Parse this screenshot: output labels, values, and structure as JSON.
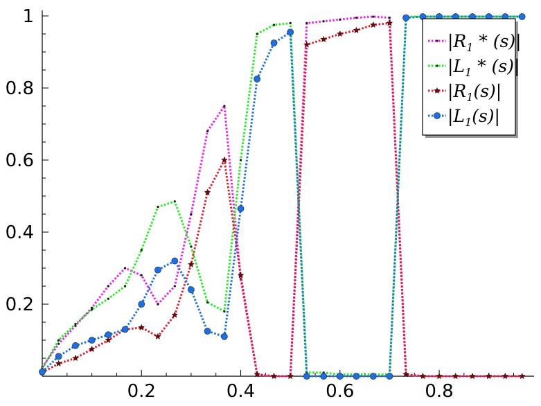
{
  "chart_data": {
    "type": "line",
    "title": "",
    "xlabel": "",
    "ylabel": "",
    "xlim": [
      0,
      0.98
    ],
    "ylim": [
      0,
      1.0
    ],
    "grid": false,
    "legend_position": "top-right",
    "x_ticks": [
      {
        "value": 0.2,
        "label": "0.2"
      },
      {
        "value": 0.4,
        "label": "0.4"
      },
      {
        "value": 0.6,
        "label": "0.6"
      },
      {
        "value": 0.8,
        "label": "0.8"
      }
    ],
    "y_ticks": [
      {
        "value": 0.2,
        "label": "0.2"
      },
      {
        "value": 0.4,
        "label": "0.4"
      },
      {
        "value": 0.6,
        "label": "0.6"
      },
      {
        "value": 0.8,
        "label": "0.8"
      },
      {
        "value": 1.0,
        "label": "1"
      }
    ],
    "x": [
      0.0,
      0.033,
      0.067,
      0.1,
      0.133,
      0.167,
      0.2,
      0.233,
      0.267,
      0.3,
      0.333,
      0.367,
      0.4,
      0.433,
      0.467,
      0.5,
      0.533,
      0.567,
      0.6,
      0.633,
      0.667,
      0.7,
      0.733,
      0.767,
      0.8,
      0.833,
      0.867,
      0.9,
      0.933,
      0.967
    ],
    "series": [
      {
        "name": "|R1*(s)|",
        "legend_label": "|R1 * (s)|",
        "color": "#ee1fee",
        "marker": "dot",
        "values": [
          0.025,
          0.09,
          0.14,
          0.19,
          0.25,
          0.3,
          0.28,
          0.2,
          0.25,
          0.45,
          0.68,
          0.75,
          0.27,
          0.005,
          0.0,
          0.0,
          0.98,
          0.985,
          0.99,
          0.995,
          0.998,
          0.995,
          0.005,
          0.0,
          0.0,
          0.0,
          0.0,
          0.0,
          0.0,
          0.0
        ]
      },
      {
        "name": "|L1*(s)|",
        "legend_label": "|L1 * (s)|",
        "color": "#1fee1f",
        "marker": "dot",
        "values": [
          0.02,
          0.1,
          0.145,
          0.185,
          0.215,
          0.25,
          0.35,
          0.47,
          0.485,
          0.36,
          0.205,
          0.18,
          0.6,
          0.95,
          0.975,
          0.98,
          0.01,
          0.01,
          0.005,
          0.005,
          0.005,
          0.005,
          0.998,
          0.998,
          0.998,
          0.998,
          0.998,
          0.998,
          0.998,
          0.998
        ]
      },
      {
        "name": "|R1(s)|",
        "legend_label": "|R1(s)|",
        "color": "#dd1f2f",
        "marker": "star",
        "values": [
          0.01,
          0.035,
          0.05,
          0.075,
          0.1,
          0.13,
          0.135,
          0.11,
          0.17,
          0.31,
          0.51,
          0.6,
          0.28,
          0.005,
          0.0,
          0.0,
          0.92,
          0.935,
          0.95,
          0.96,
          0.975,
          0.98,
          0.005,
          0.0,
          0.0,
          0.0,
          0.0,
          0.0,
          0.0,
          0.0
        ]
      },
      {
        "name": "|L1(s)|",
        "legend_label": "|L1(s)|",
        "color": "#1f6fdf",
        "marker": "circle",
        "values": [
          0.012,
          0.055,
          0.085,
          0.1,
          0.115,
          0.13,
          0.2,
          0.295,
          0.32,
          0.24,
          0.125,
          0.11,
          0.465,
          0.825,
          0.925,
          0.955,
          0.0,
          0.0,
          0.0,
          0.0,
          0.0,
          0.0,
          0.995,
          0.998,
          0.998,
          0.998,
          0.998,
          0.998,
          0.998,
          0.998
        ]
      }
    ]
  }
}
